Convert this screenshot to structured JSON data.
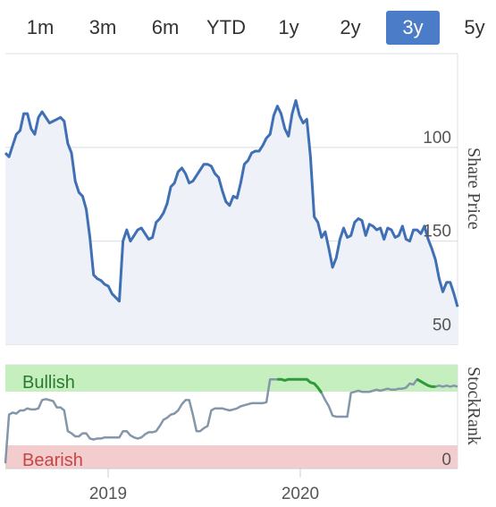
{
  "range_tabs": {
    "items": [
      "1m",
      "3m",
      "6m",
      "YTD",
      "1y",
      "2y",
      "3y",
      "5y"
    ],
    "active": "3y",
    "active_color": "#4a7cc7"
  },
  "chart_data": [
    {
      "type": "area",
      "ylabel": "Share Price",
      "ylim": [
        45,
        200
      ],
      "yticks": [
        50,
        100,
        150
      ],
      "grid": true,
      "line_color": "#3f6fb5",
      "fill_color": "#eef1f7",
      "x": [
        "2018-07",
        "2018-07",
        "2018-08",
        "2018-08",
        "2018-08",
        "2018-08",
        "2018-09",
        "2018-09",
        "2018-09",
        "2018-09",
        "2018-10",
        "2018-10",
        "2018-10",
        "2018-10",
        "2018-11",
        "2018-11",
        "2018-11",
        "2018-11",
        "2018-12",
        "2018-12",
        "2018-12",
        "2018-12",
        "2019-01",
        "2019-01",
        "2019-01",
        "2019-01",
        "2019-02",
        "2019-02",
        "2019-02",
        "2019-02",
        "2019-03",
        "2019-03",
        "2019-03",
        "2019-03",
        "2019-04",
        "2019-04",
        "2019-04",
        "2019-04",
        "2019-05",
        "2019-05",
        "2019-05",
        "2019-05",
        "2019-06",
        "2019-06",
        "2019-06",
        "2019-06",
        "2019-07",
        "2019-07",
        "2019-07",
        "2019-07",
        "2019-08",
        "2019-08",
        "2019-08",
        "2019-08",
        "2019-09",
        "2019-09",
        "2019-09",
        "2019-09",
        "2019-10",
        "2019-10",
        "2019-10",
        "2019-10",
        "2019-11",
        "2019-11",
        "2019-11",
        "2019-11",
        "2019-12",
        "2019-12",
        "2019-12",
        "2019-12",
        "2020-01",
        "2020-01",
        "2020-01",
        "2020-01",
        "2020-02",
        "2020-02",
        "2020-02",
        "2020-02",
        "2020-03",
        "2020-03",
        "2020-03",
        "2020-03",
        "2020-04",
        "2020-04",
        "2020-04",
        "2020-04",
        "2020-05",
        "2020-05",
        "2020-05",
        "2020-05",
        "2020-06",
        "2020-06",
        "2020-06",
        "2020-06",
        "2020-07",
        "2020-07",
        "2020-07",
        "2020-07",
        "2020-08",
        "2020-08",
        "2020-08",
        "2020-08",
        "2020-09",
        "2020-09",
        "2020-09",
        "2020-09",
        "2020-10",
        "2020-10",
        "2020-10",
        "2020-10",
        "2020-11",
        "2020-11",
        "2020-11",
        "2020-11",
        "2020-12",
        "2020-12",
        "2020-12",
        "2020-12",
        "2021-01",
        "2021-01",
        "2021-01",
        "2021-01",
        "2021-02",
        "2021-02"
      ],
      "values": [
        147,
        145,
        151,
        157,
        159,
        168,
        168,
        160,
        157,
        166,
        169,
        166,
        163,
        164,
        165,
        166,
        164,
        152,
        147,
        132,
        126,
        124,
        117,
        102,
        82,
        80,
        79,
        77,
        76,
        72,
        70,
        68,
        100,
        106,
        100,
        103,
        106,
        107,
        104,
        101,
        102,
        110,
        112,
        115,
        120,
        129,
        131,
        137,
        139,
        136,
        131,
        132,
        135,
        138,
        141,
        141,
        140,
        136,
        134,
        127,
        121,
        119,
        124,
        123,
        131,
        141,
        143,
        147,
        148,
        148,
        151,
        155,
        157,
        167,
        172,
        168,
        160,
        156,
        168,
        175,
        167,
        163,
        165,
        145,
        113,
        110,
        102,
        105,
        96,
        86,
        91,
        101,
        107,
        102,
        103,
        110,
        112,
        111,
        103,
        109,
        108,
        106,
        107,
        101,
        107,
        106,
        102,
        103,
        108,
        101,
        100,
        106,
        106,
        104,
        108,
        101,
        96,
        90,
        80,
        73,
        78,
        78,
        72,
        65
      ]
    },
    {
      "type": "line",
      "ylabel": "StockRank",
      "bands": [
        {
          "label": "Bullish",
          "color": "#c6efc0",
          "text_color": "#2b7a2b"
        },
        {
          "label": "Bearish",
          "color": "#f3cdcd",
          "text_color": "#c94545"
        }
      ],
      "ytick": 0,
      "line_color": "#8496a9",
      "highlight_color": "#2f9a3a",
      "xtick_labels": [
        "2019",
        "2020"
      ],
      "x": [
        "2018-07",
        "2018-07",
        "2018-08",
        "2018-08",
        "2018-08",
        "2018-08",
        "2018-09",
        "2018-09",
        "2018-09",
        "2018-09",
        "2018-10",
        "2018-10",
        "2018-10",
        "2018-10",
        "2018-11",
        "2018-11",
        "2018-11",
        "2018-11",
        "2018-12",
        "2018-12",
        "2018-12",
        "2018-12",
        "2019-01",
        "2019-01",
        "2019-01",
        "2019-01",
        "2019-02",
        "2019-02",
        "2019-02",
        "2019-02",
        "2019-03",
        "2019-03",
        "2019-03",
        "2019-03",
        "2019-04",
        "2019-04",
        "2019-04",
        "2019-04",
        "2019-05",
        "2019-05",
        "2019-05",
        "2019-05",
        "2019-06",
        "2019-06",
        "2019-06",
        "2019-06",
        "2019-07",
        "2019-07",
        "2019-07",
        "2019-07",
        "2019-08",
        "2019-08",
        "2019-08",
        "2019-08",
        "2019-09",
        "2019-09",
        "2019-09",
        "2019-09",
        "2019-10",
        "2019-10",
        "2019-10",
        "2019-10",
        "2019-11",
        "2019-11",
        "2019-11",
        "2019-11",
        "2019-12",
        "2019-12",
        "2019-12",
        "2019-12",
        "2020-01",
        "2020-01",
        "2020-01",
        "2020-01",
        "2020-02",
        "2020-02",
        "2020-02",
        "2020-02",
        "2020-03",
        "2020-03",
        "2020-03",
        "2020-03",
        "2020-04",
        "2020-04",
        "2020-04",
        "2020-04",
        "2020-05",
        "2020-05",
        "2020-05",
        "2020-05",
        "2020-06",
        "2020-06",
        "2020-06",
        "2020-06",
        "2020-07",
        "2020-07",
        "2020-07",
        "2020-07",
        "2020-08",
        "2020-08",
        "2020-08",
        "2020-08",
        "2020-09",
        "2020-09",
        "2020-09",
        "2020-09",
        "2020-10",
        "2020-10",
        "2020-10",
        "2020-10",
        "2020-11",
        "2020-11",
        "2020-11",
        "2020-11",
        "2020-12",
        "2020-12",
        "2020-12",
        "2020-12",
        "2021-01",
        "2021-01",
        "2021-01",
        "2021-01",
        "2021-02",
        "2021-02"
      ],
      "values": [
        5,
        52,
        54,
        53,
        56,
        56,
        58,
        57,
        57,
        58,
        66,
        67,
        66,
        65,
        59,
        59,
        56,
        36,
        34,
        31,
        31,
        34,
        34,
        29,
        28,
        29,
        29,
        30,
        30,
        30,
        30,
        30,
        36,
        36,
        32,
        30,
        29,
        30,
        33,
        35,
        35,
        36,
        41,
        47,
        49,
        52,
        53,
        56,
        62,
        66,
        66,
        52,
        36,
        36,
        39,
        41,
        56,
        58,
        58,
        58,
        57,
        56,
        57,
        58,
        60,
        61,
        62,
        63,
        63,
        63,
        63,
        64,
        86,
        86,
        86,
        86,
        85,
        86,
        86,
        86,
        86,
        86,
        86,
        83,
        82,
        78,
        73,
        66,
        60,
        51,
        50,
        50,
        50,
        50,
        73,
        74,
        75,
        74,
        74,
        74,
        75,
        76,
        75,
        76,
        77,
        76,
        76,
        77,
        77,
        78,
        82,
        81,
        86,
        84,
        82,
        80,
        79,
        79,
        80,
        79,
        80,
        79,
        80,
        79
      ],
      "highlight_ranges": [
        [
          74,
          86
        ],
        [
          112,
          117
        ]
      ]
    }
  ]
}
